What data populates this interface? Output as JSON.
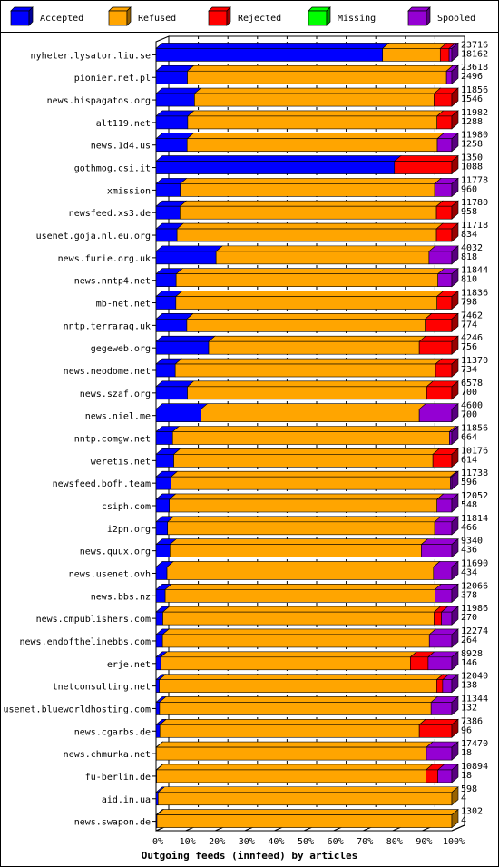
{
  "colors": {
    "accepted": "#0000ff",
    "refused": "#ffa500",
    "rejected": "#ff0000",
    "missing": "#00ff00",
    "spooled": "#9400d3"
  },
  "chart_data": {
    "type": "bar",
    "orientation": "horizontal",
    "stacked": "percent",
    "title": "Outgoing feeds (innfeed) by articles",
    "xlabel": "Outgoing feeds (innfeed) by articles",
    "ylabel": "",
    "xlim": [
      0,
      100
    ],
    "grid": true,
    "legend_position": "top",
    "x_ticks": [
      "0%",
      "10%",
      "20%",
      "30%",
      "40%",
      "50%",
      "60%",
      "70%",
      "80%",
      "90%",
      "100%"
    ],
    "legend": [
      "Accepted",
      "Refused",
      "Rejected",
      "Missing",
      "Spooled"
    ],
    "categories": [
      "nyheter.lysator.liu.se",
      "pionier.net.pl",
      "news.hispagatos.org",
      "alt119.net",
      "news.1d4.us",
      "gothmog.csi.it",
      "xmission",
      "newsfeed.xs3.de",
      "usenet.goja.nl.eu.org",
      "news.furie.org.uk",
      "news.nntp4.net",
      "mb-net.net",
      "nntp.terraraq.uk",
      "gegeweb.org",
      "news.neodome.net",
      "news.szaf.org",
      "news.niel.me",
      "nntp.comgw.net",
      "weretis.net",
      "newsfeed.bofh.team",
      "csiph.com",
      "i2pn.org",
      "news.quux.org",
      "news.usenet.ovh",
      "news.bbs.nz",
      "news.cmpublishers.com",
      "news.endofthelinebbs.com",
      "erje.net",
      "tnetconsulting.net",
      "usenet.blueworldhosting.com",
      "news.cgarbs.de",
      "news.chmurka.net",
      "fu-berlin.de",
      "aid.in.ua",
      "news.swapon.de"
    ],
    "offered": [
      23716,
      23618,
      11856,
      11982,
      11980,
      1350,
      11778,
      11780,
      11718,
      4032,
      11844,
      11836,
      7462,
      4246,
      11370,
      6578,
      4600,
      11856,
      10176,
      11738,
      12052,
      11814,
      9340,
      11690,
      12066,
      11986,
      12274,
      8928,
      12040,
      11344,
      7386,
      17470,
      10894,
      598,
      1302
    ],
    "accepted_counts": [
      18162,
      2496,
      1546,
      1288,
      1258,
      1088,
      960,
      958,
      834,
      818,
      810,
      798,
      774,
      756,
      734,
      700,
      700,
      664,
      614,
      596,
      548,
      466,
      436,
      434,
      378,
      270,
      264,
      146,
      138,
      132,
      96,
      18,
      18,
      4,
      4
    ],
    "series": [
      {
        "name": "Accepted",
        "values": [
          76.6,
          10.6,
          13.0,
          10.7,
          10.5,
          80.6,
          8.2,
          8.1,
          7.1,
          20.3,
          6.8,
          6.7,
          10.4,
          17.8,
          6.5,
          10.6,
          15.2,
          5.6,
          6.0,
          5.1,
          4.5,
          3.9,
          4.7,
          3.7,
          3.1,
          2.3,
          2.2,
          1.6,
          1.1,
          1.2,
          1.3,
          0.1,
          0.2,
          0.7,
          0.3
        ]
      },
      {
        "name": "Refused",
        "values": [
          19.5,
          87.6,
          81.0,
          84.3,
          84.6,
          0,
          86.0,
          86.7,
          87.7,
          72.0,
          88.5,
          88.3,
          80.6,
          71.2,
          88.0,
          80.9,
          73.8,
          93.6,
          87.6,
          94.4,
          90.5,
          90.3,
          85.0,
          90.1,
          91.2,
          91.7,
          90.2,
          84.4,
          93.8,
          91.8,
          87.7,
          91.3,
          91.1,
          99.3,
          99.7
        ]
      },
      {
        "name": "Rejected",
        "values": [
          3.0,
          0,
          6.0,
          5.0,
          0,
          19.4,
          0,
          5.2,
          5.2,
          0,
          0,
          5.0,
          9.0,
          11.0,
          5.5,
          8.5,
          0,
          0,
          6.4,
          0,
          0,
          0,
          0,
          0,
          0,
          2.5,
          0,
          6.0,
          2.0,
          0,
          11.0,
          0,
          4.0,
          0,
          0
        ]
      },
      {
        "name": "Missing",
        "values": [
          0,
          0,
          0,
          0,
          0,
          0,
          0,
          0,
          0,
          0,
          0,
          0,
          0,
          0,
          0,
          0,
          0,
          0,
          0,
          0,
          0,
          0,
          0,
          0,
          0,
          0,
          0,
          0,
          0,
          0,
          0,
          0,
          0,
          0,
          0
        ]
      },
      {
        "name": "Spooled",
        "values": [
          0.9,
          1.8,
          0,
          0,
          4.9,
          0,
          5.8,
          0,
          0,
          7.7,
          4.7,
          0,
          0,
          0,
          0,
          0,
          11.0,
          0.8,
          0,
          0.5,
          5.0,
          5.8,
          10.3,
          6.2,
          5.7,
          3.5,
          7.6,
          8.0,
          3.1,
          7.0,
          0,
          8.6,
          4.7,
          0,
          0
        ]
      }
    ]
  }
}
